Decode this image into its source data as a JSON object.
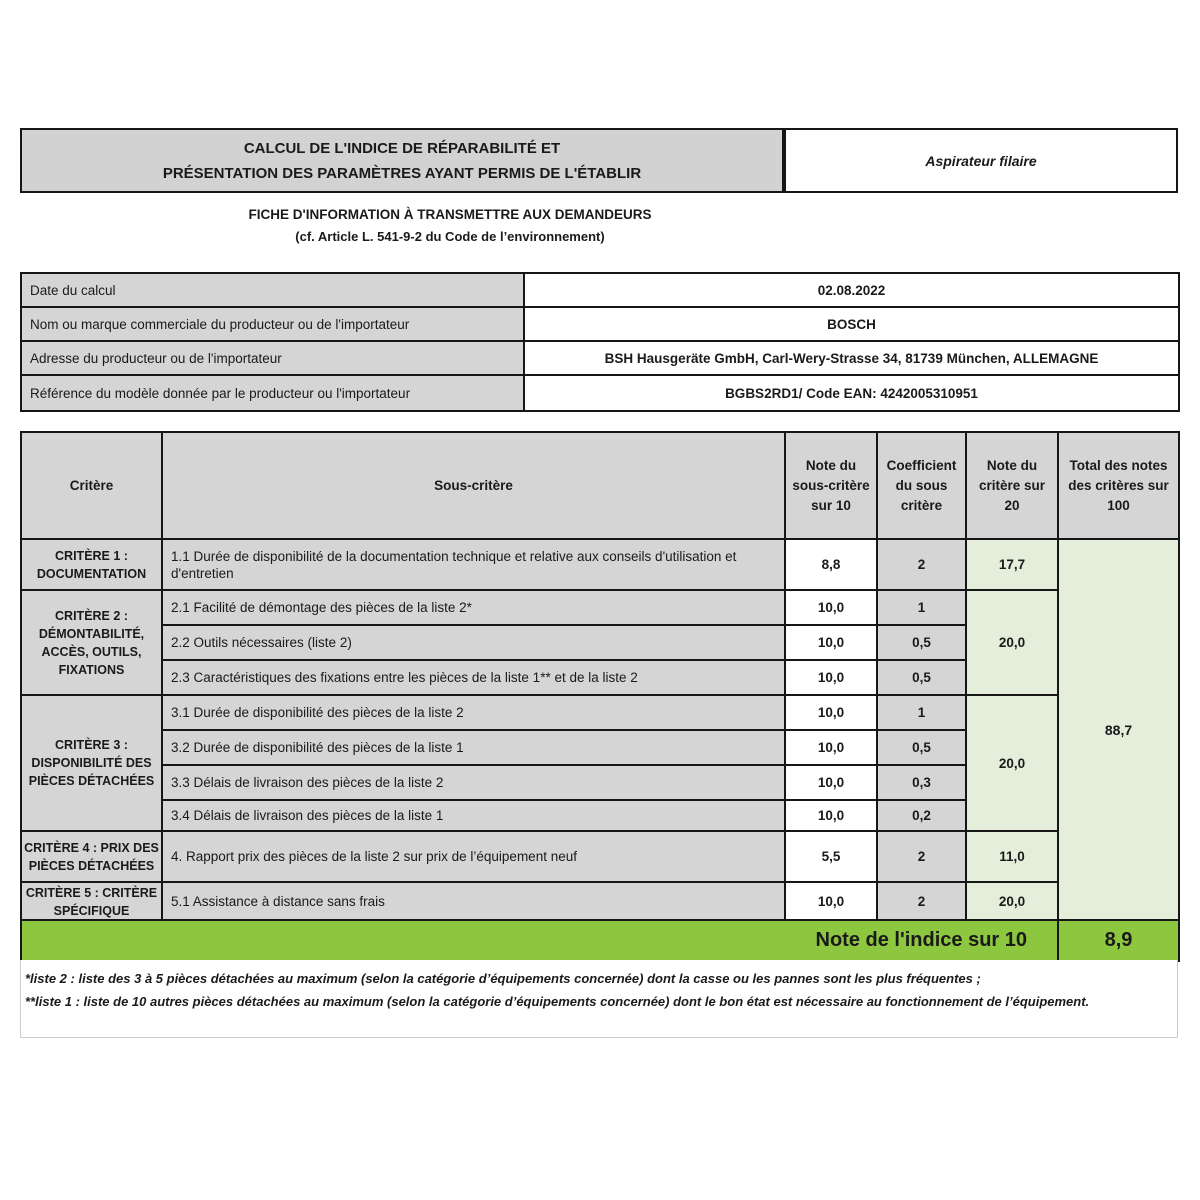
{
  "header": {
    "title_line1": "CALCUL DE L'INDICE DE RÉPARABILITÉ ET",
    "title_line2": "PRÉSENTATION DES PARAMÈTRES AYANT PERMIS DE L'ÉTABLIR",
    "product_type": "Aspirateur filaire",
    "subtitle_line1": "FICHE D'INFORMATION À TRANSMETTRE AUX DEMANDEURS",
    "subtitle_line2": "(cf. Article L. 541-9-2 du Code de l’environnement)"
  },
  "info_rows": [
    {
      "label": "Date du calcul",
      "value": "02.08.2022"
    },
    {
      "label": "Nom ou marque commerciale du producteur ou de l'importateur",
      "value": "BOSCH"
    },
    {
      "label": "Adresse du producteur ou de l'importateur",
      "value": "BSH Hausgeräte GmbH, Carl-Wery-Strasse 34, 81739 München, ALLEMAGNE"
    },
    {
      "label": "Référence du modèle donnée par le producteur ou l'importateur",
      "value": "BGBS2RD1/ Code EAN: 4242005310951"
    }
  ],
  "table": {
    "headers": {
      "critere": "Critère",
      "sous_critere": "Sous-critère",
      "note_sous_critere": "Note du sous-critère sur 10",
      "coefficient": "Coefficient du sous critère",
      "note_critere": "Note du critère sur 20",
      "total": "Total des notes des critères sur 100"
    },
    "criteria": [
      {
        "name": "CRITÈRE 1 : DOCUMENTATION",
        "note_sur_20": "17,7",
        "subs": [
          {
            "label": "1.1 Durée de disponibilité de la documentation technique et relative aux conseils d'utilisation et d'entretien",
            "note": "8,8",
            "coef": "2"
          }
        ]
      },
      {
        "name": "CRITÈRE 2 : DÉMONTABILITÉ, ACCÈS, OUTILS, FIXATIONS",
        "note_sur_20": "20,0",
        "subs": [
          {
            "label": "2.1 Facilité de démontage des pièces de la liste 2*",
            "note": "10,0",
            "coef": "1"
          },
          {
            "label": "2.2 Outils nécessaires (liste 2)",
            "note": "10,0",
            "coef": "0,5"
          },
          {
            "label": "2.3 Caractéristiques des fixations entre les pièces de la liste 1** et de la liste 2",
            "note": "10,0",
            "coef": "0,5"
          }
        ]
      },
      {
        "name": "CRITÈRE 3 : DISPONIBILITÉ DES PIÈCES DÉTACHÉES",
        "note_sur_20": "20,0",
        "subs": [
          {
            "label": "3.1 Durée de disponibilité des pièces de la liste 2",
            "note": "10,0",
            "coef": "1"
          },
          {
            "label": "3.2 Durée de disponibilité des pièces de la liste 1",
            "note": "10,0",
            "coef": "0,5"
          },
          {
            "label": "3.3 Délais de livraison des pièces de la liste 2",
            "note": "10,0",
            "coef": "0,3"
          },
          {
            "label": "3.4 Délais de livraison des pièces de la liste 1",
            "note": "10,0",
            "coef": "0,2"
          }
        ]
      },
      {
        "name": "CRITÈRE 4 : PRIX DES PIÈCES DÉTACHÉES",
        "note_sur_20": "11,0",
        "subs": [
          {
            "label": "4. Rapport prix des pièces de la liste 2 sur prix de l’équipement neuf",
            "note": "5,5",
            "coef": "2"
          }
        ]
      },
      {
        "name": "CRITÈRE 5 : CRITÈRE SPÉCIFIQUE",
        "note_sur_20": "20,0",
        "subs": [
          {
            "label": "5.1 Assistance à distance sans frais",
            "note": "10,0",
            "coef": "2"
          }
        ]
      }
    ],
    "total_sur_100": "88,7",
    "index_label": "Note de l'indice sur 10",
    "index_value": "8,9"
  },
  "footnotes": [
    "*liste 2 : liste des 3 à 5 pièces détachées au maximum (selon la catégorie d’équipements concernée) dont la casse ou les pannes sont les plus fréquentes ;",
    "**liste 1 : liste de 10 autres pièces détachées au maximum (selon la catégorie d’équipements concernée) dont le bon état est nécessaire au fonctionnement de l’équipement."
  ],
  "colors": {
    "index_green": "#8dc63f",
    "score_cell_green": "#e4eeda",
    "cell_gray": "#d5d5d5",
    "border_black": "#161616"
  }
}
